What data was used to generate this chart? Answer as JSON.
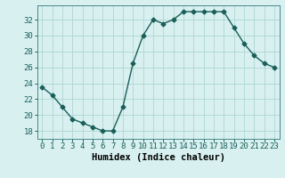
{
  "x": [
    0,
    1,
    2,
    3,
    4,
    5,
    6,
    7,
    8,
    9,
    10,
    11,
    12,
    13,
    14,
    15,
    16,
    17,
    18,
    19,
    20,
    21,
    22,
    23
  ],
  "y": [
    23.5,
    22.5,
    21.0,
    19.5,
    19.0,
    18.5,
    18.0,
    18.0,
    21.0,
    26.5,
    30.0,
    32.0,
    31.5,
    32.0,
    33.0,
    33.0,
    33.0,
    33.0,
    33.0,
    31.0,
    29.0,
    27.5,
    26.5,
    26.0
  ],
  "line_color": "#1a5f5a",
  "marker": "D",
  "marker_size": 2.5,
  "bg_color": "#d8f0f0",
  "grid_color": "#b0d5d5",
  "xlabel": "Humidex (Indice chaleur)",
  "yticks": [
    18,
    20,
    22,
    24,
    26,
    28,
    30,
    32
  ],
  "xticks": [
    0,
    1,
    2,
    3,
    4,
    5,
    6,
    7,
    8,
    9,
    10,
    11,
    12,
    13,
    14,
    15,
    16,
    17,
    18,
    19,
    20,
    21,
    22,
    23
  ],
  "ylim": [
    17.0,
    33.8
  ],
  "xlim": [
    -0.5,
    23.5
  ],
  "xlabel_fontsize": 7.5,
  "tick_fontsize": 6.5,
  "line_width": 1.0
}
